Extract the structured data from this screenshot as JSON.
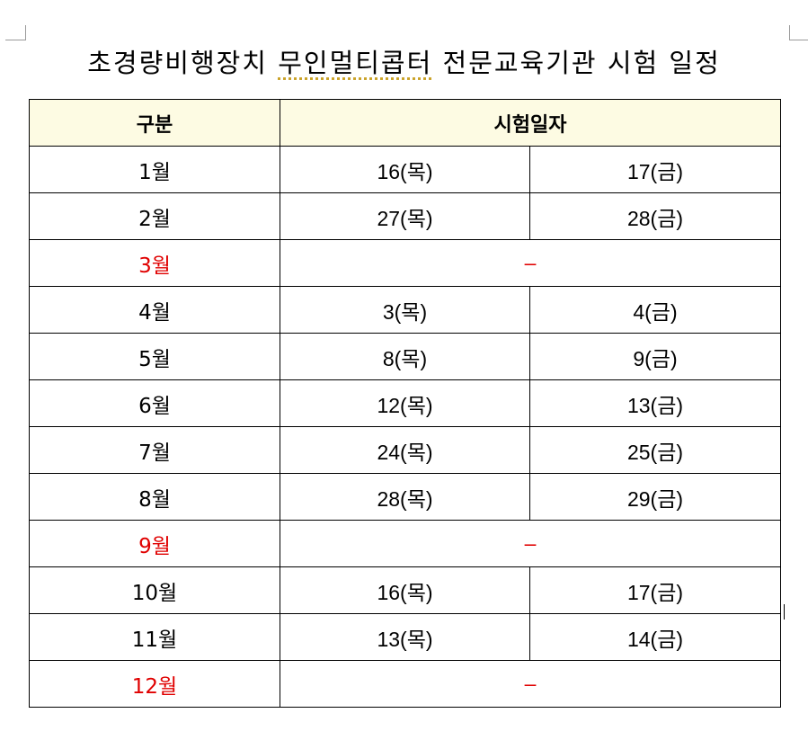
{
  "document": {
    "title_part1": "초경량비행장치",
    "title_part2": "무인멀티콥터",
    "title_part3": "전문교육기관 시험 일정"
  },
  "table": {
    "headers": {
      "category": "구분",
      "exam_date": "시험일자"
    },
    "rows": [
      {
        "month": "1월",
        "day1": "16(목)",
        "day2": "17(금)",
        "no_exam": false
      },
      {
        "month": "2월",
        "day1": "27(목)",
        "day2": "28(금)",
        "no_exam": false
      },
      {
        "month": "3월",
        "none": "–",
        "no_exam": true
      },
      {
        "month": "4월",
        "day1": "3(목)",
        "day2": "4(금)",
        "no_exam": false
      },
      {
        "month": "5월",
        "day1": "8(목)",
        "day2": "9(금)",
        "no_exam": false
      },
      {
        "month": "6월",
        "day1": "12(목)",
        "day2": "13(금)",
        "no_exam": false
      },
      {
        "month": "7월",
        "day1": "24(목)",
        "day2": "25(금)",
        "no_exam": false
      },
      {
        "month": "8월",
        "day1": "28(목)",
        "day2": "29(금)",
        "no_exam": false
      },
      {
        "month": "9월",
        "none": "–",
        "no_exam": true
      },
      {
        "month": "10월",
        "day1": "16(목)",
        "day2": "17(금)",
        "no_exam": false
      },
      {
        "month": "11월",
        "day1": "13(목)",
        "day2": "14(금)",
        "no_exam": false
      },
      {
        "month": "12월",
        "none": "–",
        "no_exam": true
      }
    ]
  },
  "colors": {
    "header_background": "#fdfbe3",
    "no_exam_text": "#e00000",
    "border": "#000000"
  }
}
